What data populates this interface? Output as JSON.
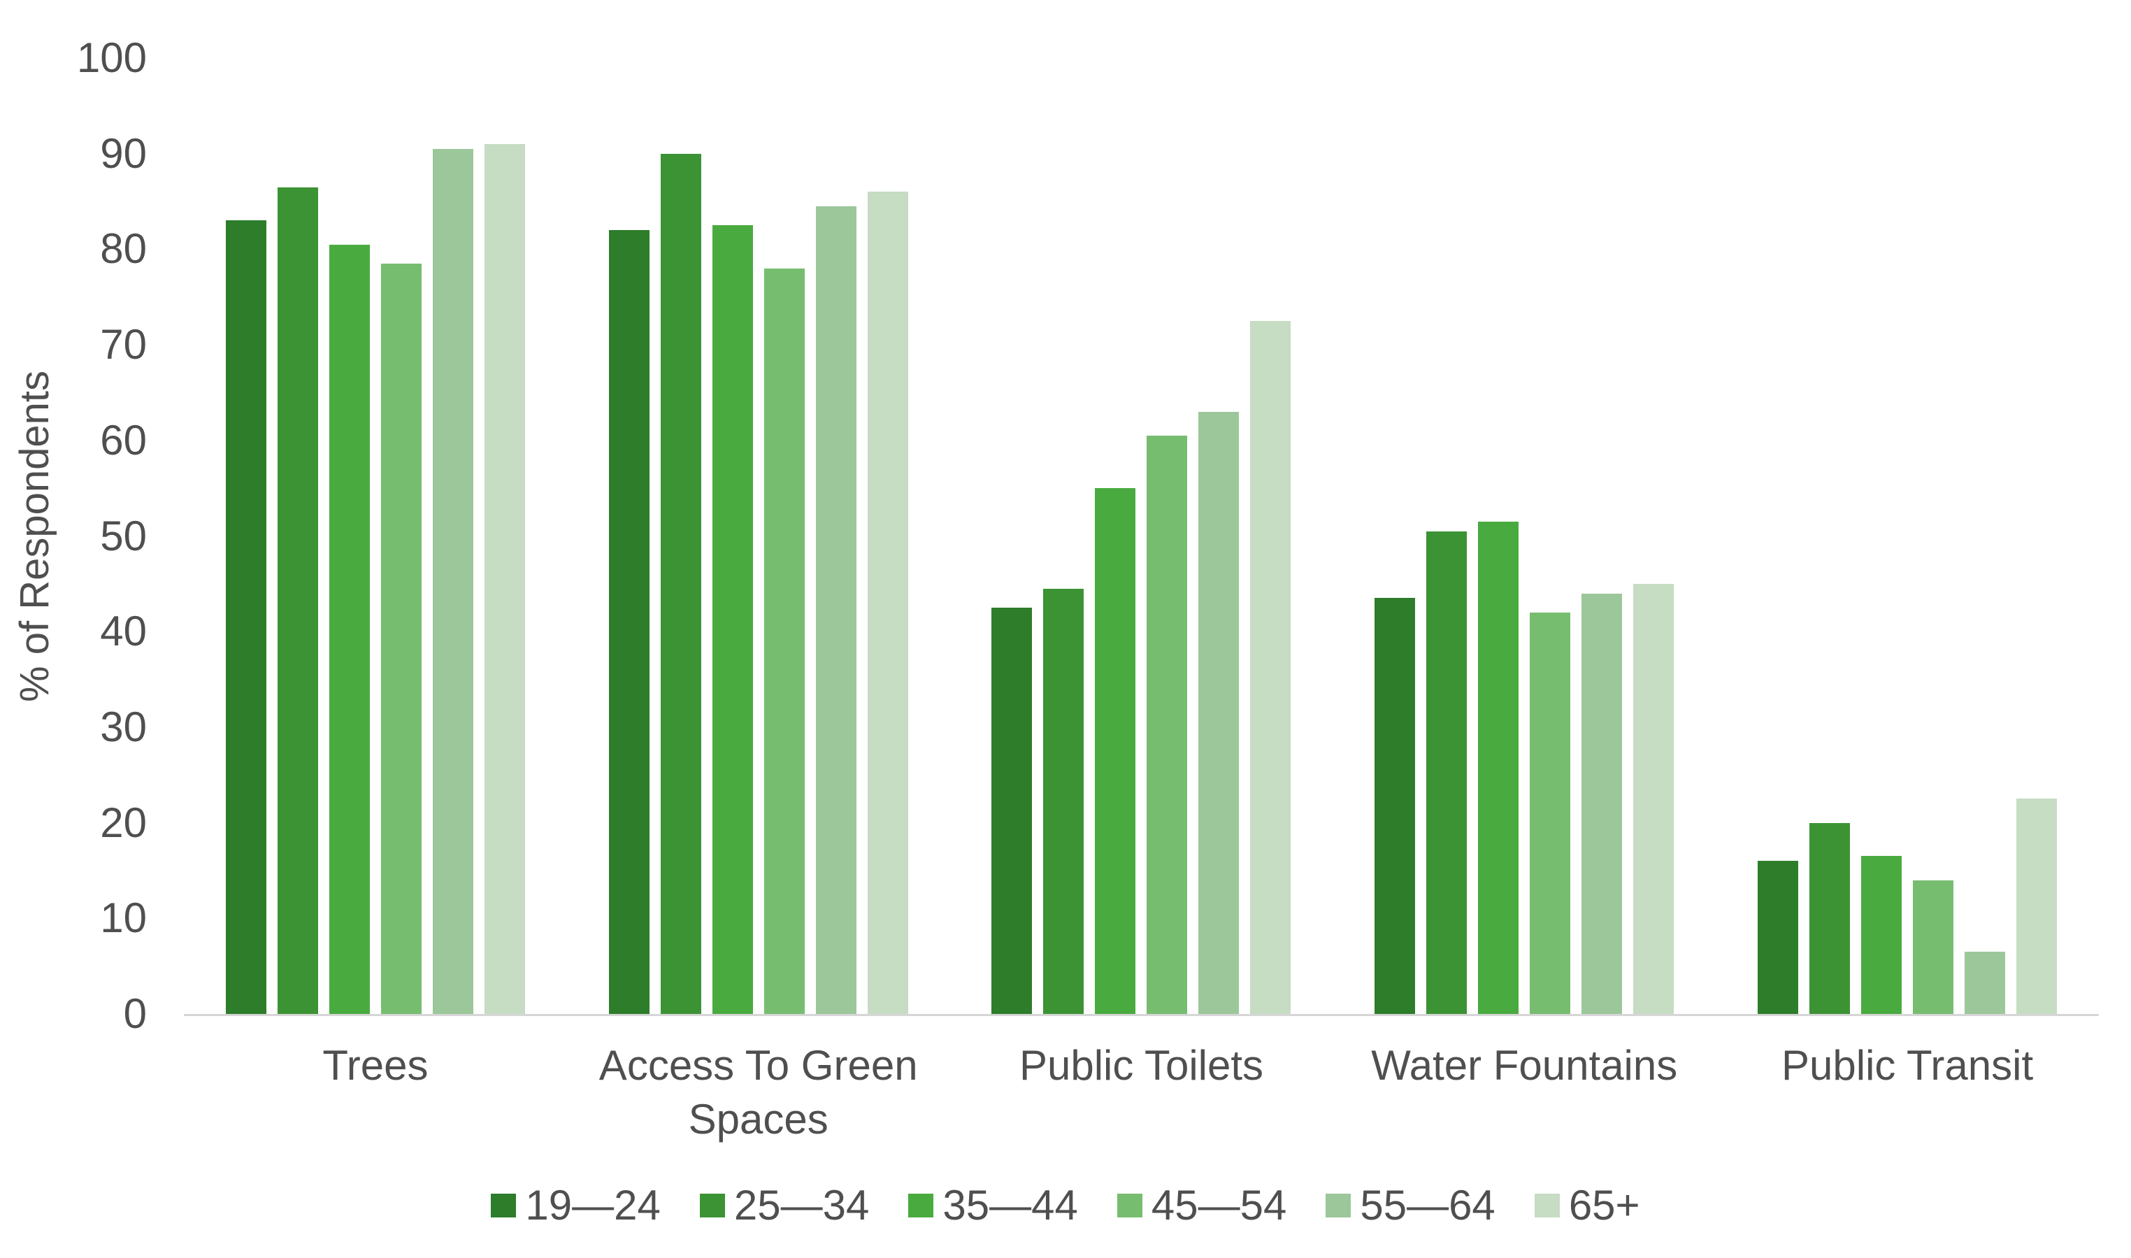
{
  "page": {
    "background": "#ffffff",
    "text_color": "#4f4f4f",
    "axis_line_color": "#d6d6d6"
  },
  "chart_data": {
    "type": "bar",
    "title": "",
    "xlabel": "",
    "ylabel": "% of Respondents",
    "ylim": [
      0,
      100
    ],
    "ytick_step": 10,
    "ytick_labels": [
      "0",
      "10",
      "20",
      "30",
      "40",
      "50",
      "60",
      "70",
      "80",
      "90",
      "100"
    ],
    "grid": false,
    "legend_position": "bottom",
    "categories": [
      "Trees",
      "Access To Green Spaces",
      "Public Toilets",
      "Water Fountains",
      "Public Transit"
    ],
    "series": [
      {
        "name": "19—24",
        "color": "#2d7d2b",
        "values": [
          83,
          82,
          42.5,
          43.5,
          16
        ]
      },
      {
        "name": "25—34",
        "color": "#3c9334",
        "values": [
          86.5,
          90,
          44.5,
          50.5,
          20
        ]
      },
      {
        "name": "35—44",
        "color": "#49ab3f",
        "values": [
          80.5,
          82.5,
          55,
          51.5,
          16.5
        ]
      },
      {
        "name": "45—54",
        "color": "#76bd70",
        "values": [
          78.5,
          78,
          60.5,
          42,
          14
        ]
      },
      {
        "name": "55—64",
        "color": "#9cc79a",
        "values": [
          90.5,
          84.5,
          63,
          44,
          6.5
        ]
      },
      {
        "name": "65+",
        "color": "#c6dcc3",
        "values": [
          91,
          86,
          72.5,
          45,
          22.5
        ]
      }
    ]
  }
}
